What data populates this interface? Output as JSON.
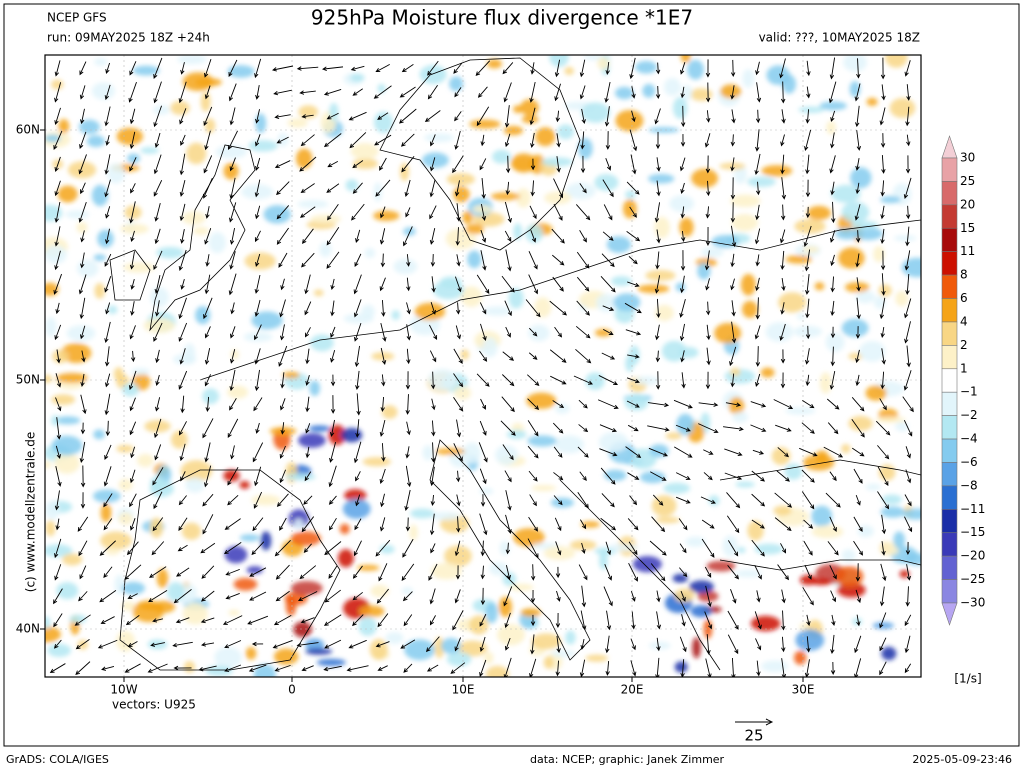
{
  "header": {
    "model": "NCEP GFS",
    "run": "run: 09MAY2025 18Z +24h",
    "title": "925hPa Moisture flux divergence *1E7",
    "valid": "valid: ???, 10MAY2025 18Z"
  },
  "map": {
    "lat_labels": [
      "60N",
      "50N",
      "40N"
    ],
    "lon_labels": [
      "10W",
      "0",
      "10E",
      "20E",
      "30E"
    ],
    "copyright": "(c) www.modellzentrale.de",
    "vectors_note": "vectors: U925",
    "reference_vector": "25"
  },
  "colorbar": {
    "labels": [
      "30",
      "25",
      "20",
      "15",
      "11",
      "8",
      "6",
      "4",
      "2",
      "1",
      "−1",
      "−2",
      "−4",
      "−6",
      "−8",
      "−11",
      "−15",
      "−20",
      "−25",
      "−30"
    ],
    "colors": [
      "#f3cfd6",
      "#e8a2a6",
      "#d86a6a",
      "#c43a32",
      "#a80a0a",
      "#cc1000",
      "#f05a0a",
      "#f5a418",
      "#f8d685",
      "#fdf1c8",
      "#ffffff",
      "#e2f5fb",
      "#b3e8f2",
      "#84cbef",
      "#5aa2e6",
      "#2a6fd2",
      "#1a2ea8",
      "#3a3ab8",
      "#6262d2",
      "#8a86e2",
      "#b7a6f2"
    ],
    "unit": "[1/s]"
  },
  "footer": {
    "software": "GrADS: COLA/IGES",
    "credits": "data: NCEP; graphic: Janek Zimmer",
    "timestamp": "2025-05-09-23:46"
  }
}
